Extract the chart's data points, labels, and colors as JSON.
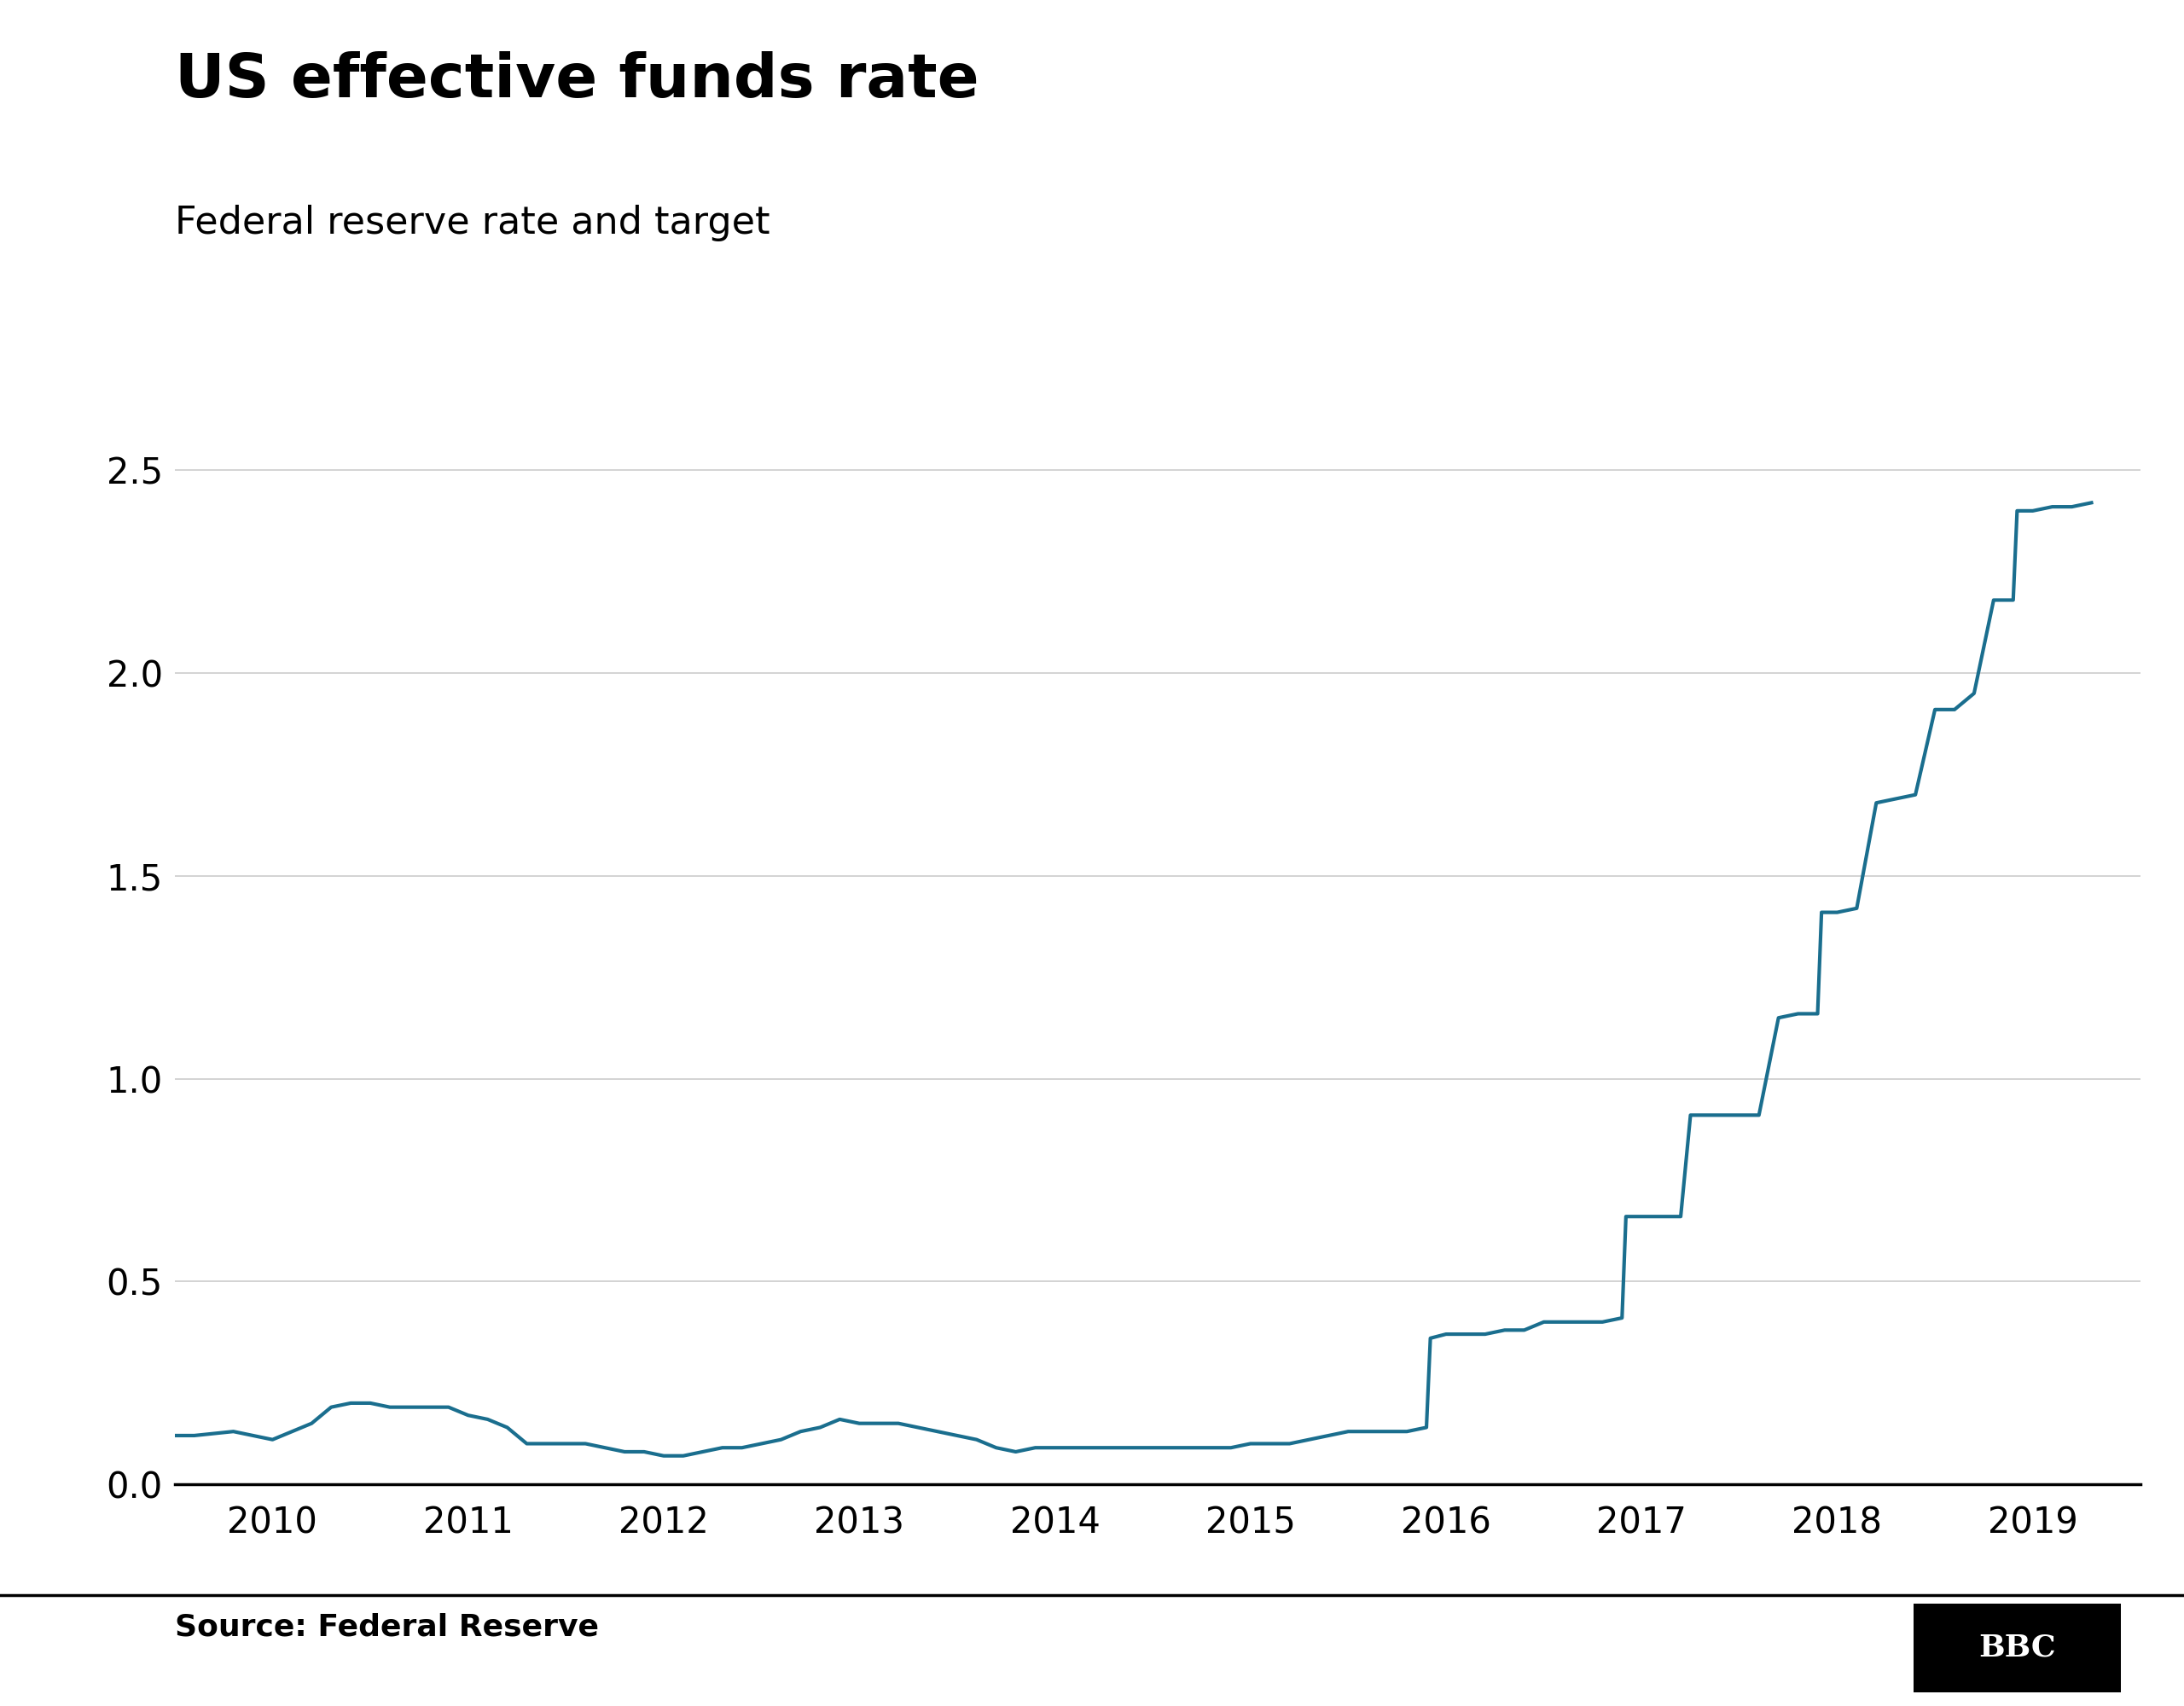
{
  "title": "US effective funds rate",
  "subtitle": "Federal reserve rate and target",
  "source": "Source: Federal Reserve",
  "line_color": "#1a6e8e",
  "line_width": 3.0,
  "background_color": "#ffffff",
  "ylim": [
    0,
    2.65
  ],
  "yticks": [
    0.0,
    0.5,
    1.0,
    1.5,
    2.0,
    2.5
  ],
  "ytick_labels": [
    "0.0",
    "0.5",
    "1.0",
    "1.5",
    "2.0",
    "2.5"
  ],
  "xtick_labels": [
    "2010",
    "2011",
    "2012",
    "2013",
    "2014",
    "2015",
    "2016",
    "2017",
    "2018",
    "2019"
  ],
  "title_fontsize": 52,
  "subtitle_fontsize": 32,
  "tick_fontsize": 30,
  "source_fontsize": 26,
  "bbc_fontsize": 26,
  "xlim": [
    2009.5,
    2019.55
  ],
  "data": [
    [
      2009.5,
      0.12
    ],
    [
      2009.6,
      0.12
    ],
    [
      2009.8,
      0.13
    ],
    [
      2010.0,
      0.11
    ],
    [
      2010.1,
      0.13
    ],
    [
      2010.2,
      0.15
    ],
    [
      2010.3,
      0.19
    ],
    [
      2010.4,
      0.2
    ],
    [
      2010.5,
      0.2
    ],
    [
      2010.6,
      0.19
    ],
    [
      2010.7,
      0.19
    ],
    [
      2010.8,
      0.19
    ],
    [
      2010.9,
      0.19
    ],
    [
      2011.0,
      0.17
    ],
    [
      2011.1,
      0.16
    ],
    [
      2011.2,
      0.14
    ],
    [
      2011.3,
      0.1
    ],
    [
      2011.4,
      0.1
    ],
    [
      2011.5,
      0.1
    ],
    [
      2011.6,
      0.1
    ],
    [
      2011.7,
      0.09
    ],
    [
      2011.8,
      0.08
    ],
    [
      2011.9,
      0.08
    ],
    [
      2012.0,
      0.07
    ],
    [
      2012.1,
      0.07
    ],
    [
      2012.2,
      0.08
    ],
    [
      2012.3,
      0.09
    ],
    [
      2012.4,
      0.09
    ],
    [
      2012.5,
      0.1
    ],
    [
      2012.6,
      0.11
    ],
    [
      2012.7,
      0.13
    ],
    [
      2012.8,
      0.14
    ],
    [
      2012.9,
      0.16
    ],
    [
      2013.0,
      0.15
    ],
    [
      2013.1,
      0.15
    ],
    [
      2013.2,
      0.15
    ],
    [
      2013.3,
      0.14
    ],
    [
      2013.4,
      0.13
    ],
    [
      2013.5,
      0.12
    ],
    [
      2013.6,
      0.11
    ],
    [
      2013.7,
      0.09
    ],
    [
      2013.8,
      0.08
    ],
    [
      2013.9,
      0.09
    ],
    [
      2014.0,
      0.09
    ],
    [
      2014.1,
      0.09
    ],
    [
      2014.2,
      0.09
    ],
    [
      2014.3,
      0.09
    ],
    [
      2014.4,
      0.09
    ],
    [
      2014.5,
      0.09
    ],
    [
      2014.6,
      0.09
    ],
    [
      2014.7,
      0.09
    ],
    [
      2014.8,
      0.09
    ],
    [
      2014.9,
      0.09
    ],
    [
      2015.0,
      0.1
    ],
    [
      2015.1,
      0.1
    ],
    [
      2015.2,
      0.1
    ],
    [
      2015.3,
      0.11
    ],
    [
      2015.4,
      0.12
    ],
    [
      2015.5,
      0.13
    ],
    [
      2015.6,
      0.13
    ],
    [
      2015.7,
      0.13
    ],
    [
      2015.8,
      0.13
    ],
    [
      2015.9,
      0.14
    ],
    [
      2015.92,
      0.36
    ],
    [
      2016.0,
      0.37
    ],
    [
      2016.1,
      0.37
    ],
    [
      2016.2,
      0.37
    ],
    [
      2016.3,
      0.38
    ],
    [
      2016.4,
      0.38
    ],
    [
      2016.5,
      0.4
    ],
    [
      2016.6,
      0.4
    ],
    [
      2016.7,
      0.4
    ],
    [
      2016.8,
      0.4
    ],
    [
      2016.9,
      0.41
    ],
    [
      2016.92,
      0.66
    ],
    [
      2017.0,
      0.66
    ],
    [
      2017.1,
      0.66
    ],
    [
      2017.2,
      0.66
    ],
    [
      2017.25,
      0.91
    ],
    [
      2017.3,
      0.91
    ],
    [
      2017.4,
      0.91
    ],
    [
      2017.5,
      0.91
    ],
    [
      2017.6,
      0.91
    ],
    [
      2017.7,
      1.15
    ],
    [
      2017.8,
      1.16
    ],
    [
      2017.9,
      1.16
    ],
    [
      2017.92,
      1.41
    ],
    [
      2018.0,
      1.41
    ],
    [
      2018.1,
      1.42
    ],
    [
      2018.2,
      1.68
    ],
    [
      2018.3,
      1.69
    ],
    [
      2018.4,
      1.7
    ],
    [
      2018.5,
      1.91
    ],
    [
      2018.6,
      1.91
    ],
    [
      2018.7,
      1.95
    ],
    [
      2018.8,
      2.18
    ],
    [
      2018.9,
      2.18
    ],
    [
      2018.92,
      2.4
    ],
    [
      2019.0,
      2.4
    ],
    [
      2019.1,
      2.41
    ],
    [
      2019.2,
      2.41
    ],
    [
      2019.3,
      2.42
    ]
  ]
}
